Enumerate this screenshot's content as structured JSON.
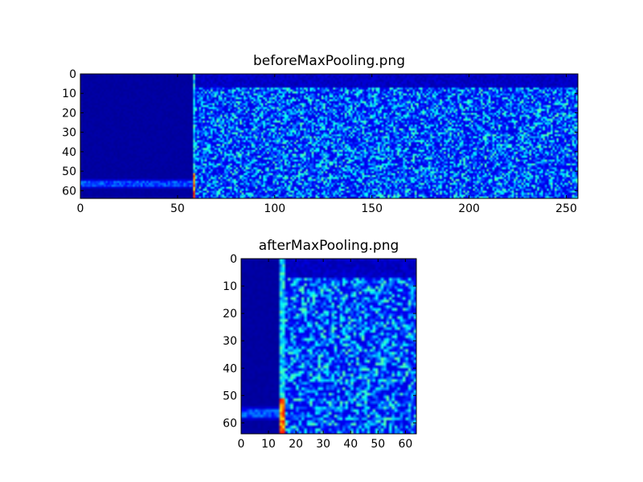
{
  "chart_data": [
    {
      "type": "heatmap",
      "title": "beforeMaxPooling.png",
      "xlabel": "",
      "ylabel": "",
      "xlim": [
        0,
        256
      ],
      "ylim": [
        64,
        0
      ],
      "x_ticks": [
        0,
        50,
        100,
        150,
        200,
        250
      ],
      "y_ticks": [
        0,
        10,
        20,
        30,
        40,
        50,
        60
      ],
      "colormap": "jet",
      "colormap_stops": [
        "#00008f",
        "#0000ff",
        "#00ffff",
        "#ffff00",
        "#ff0000"
      ],
      "dark_region_x_end": 58,
      "bright_vertical_line_x": 58,
      "bright_horizontal_band_y": 56,
      "low_value_top_band_y_end": 7,
      "description": "Image matrix 64 rows x 256 columns"
    },
    {
      "type": "heatmap",
      "title": "afterMaxPooling.png",
      "xlabel": "",
      "ylabel": "",
      "xlim": [
        0,
        64
      ],
      "ylim": [
        64,
        0
      ],
      "x_ticks": [
        0,
        10,
        20,
        30,
        40,
        50,
        60
      ],
      "y_ticks": [
        0,
        10,
        20,
        30,
        40,
        50,
        60
      ],
      "colormap": "jet",
      "colormap_stops": [
        "#00008f",
        "#0000ff",
        "#00ffff",
        "#ffff00",
        "#ff0000"
      ],
      "dark_region_x_end": 14.5,
      "bright_vertical_line_x": 14.5,
      "bright_horizontal_band_y": 56,
      "low_value_top_band_y_end": 7,
      "description": "Image matrix 64 rows x 64 columns"
    }
  ]
}
